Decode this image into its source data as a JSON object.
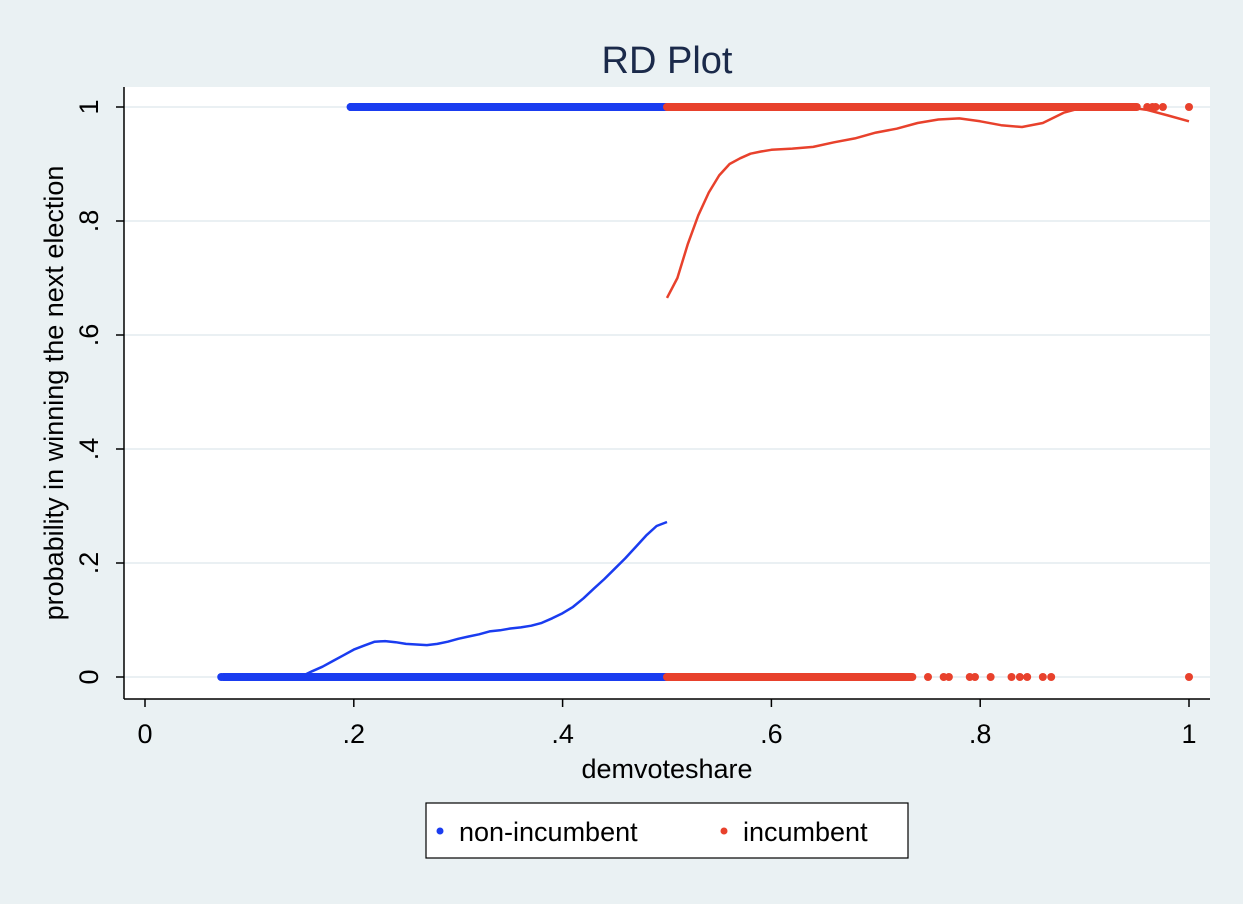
{
  "chart_data": {
    "type": "scatter",
    "title": "RD Plot",
    "xlabel": "demvoteshare",
    "ylabel": "probability in winning the next election",
    "xlim": [
      0,
      1
    ],
    "ylim": [
      0,
      1
    ],
    "xticks": [
      {
        "value": 0,
        "label": "0"
      },
      {
        "value": 0.2,
        "label": ".2"
      },
      {
        "value": 0.4,
        "label": ".4"
      },
      {
        "value": 0.6,
        "label": ".6"
      },
      {
        "value": 0.8,
        "label": ".8"
      },
      {
        "value": 1,
        "label": "1"
      }
    ],
    "yticks": [
      {
        "value": 0,
        "label": "0"
      },
      {
        "value": 0.2,
        "label": ".2"
      },
      {
        "value": 0.4,
        "label": ".4"
      },
      {
        "value": 0.6,
        "label": ".6"
      },
      {
        "value": 0.8,
        "label": ".8"
      },
      {
        "value": 1,
        "label": "1"
      }
    ],
    "grid": true,
    "legend_position": "bottom",
    "cutoff": 0.5,
    "series": [
      {
        "name": "non-incumbent",
        "color": "#1a3cf0",
        "scatter_bands": [
          {
            "y": 1,
            "x_from": 0.197,
            "x_to": 0.5
          },
          {
            "y": 0,
            "x_from": 0.075,
            "x_to": 0.5
          }
        ],
        "scatter_points": [
          {
            "x": 0.073,
            "y": 0
          },
          {
            "x": 0.095,
            "y": 0
          },
          {
            "x": 0.118,
            "y": 0
          },
          {
            "x": 0.133,
            "y": 0
          },
          {
            "x": 0.143,
            "y": 0
          },
          {
            "x": 0.15,
            "y": 0
          },
          {
            "x": 0.155,
            "y": 0
          },
          {
            "x": 0.197,
            "y": 1
          },
          {
            "x": 0.2,
            "y": 1
          },
          {
            "x": 0.212,
            "y": 1
          },
          {
            "x": 0.218,
            "y": 1
          },
          {
            "x": 0.224,
            "y": 1
          },
          {
            "x": 0.23,
            "y": 1
          },
          {
            "x": 0.236,
            "y": 1
          },
          {
            "x": 0.24,
            "y": 1
          },
          {
            "x": 0.248,
            "y": 1
          },
          {
            "x": 0.252,
            "y": 1
          },
          {
            "x": 0.26,
            "y": 1
          },
          {
            "x": 0.262,
            "y": 1
          },
          {
            "x": 0.272,
            "y": 1
          }
        ],
        "fit_line": {
          "x": [
            0.075,
            0.15,
            0.16,
            0.17,
            0.18,
            0.19,
            0.2,
            0.21,
            0.22,
            0.23,
            0.24,
            0.25,
            0.26,
            0.27,
            0.28,
            0.29,
            0.3,
            0.31,
            0.32,
            0.33,
            0.34,
            0.35,
            0.36,
            0.37,
            0.38,
            0.39,
            0.4,
            0.41,
            0.42,
            0.43,
            0.44,
            0.45,
            0.46,
            0.47,
            0.48,
            0.49,
            0.5
          ],
          "y": [
            0,
            0.001,
            0.01,
            0.018,
            0.028,
            0.038,
            0.048,
            0.055,
            0.062,
            0.063,
            0.061,
            0.058,
            0.057,
            0.056,
            0.058,
            0.062,
            0.067,
            0.071,
            0.075,
            0.08,
            0.082,
            0.085,
            0.087,
            0.09,
            0.095,
            0.103,
            0.112,
            0.123,
            0.138,
            0.155,
            0.172,
            0.19,
            0.208,
            0.228,
            0.248,
            0.265,
            0.272
          ]
        }
      },
      {
        "name": "incumbent",
        "color": "#e8412c",
        "scatter_bands": [
          {
            "y": 1,
            "x_from": 0.5,
            "x_to": 0.95
          },
          {
            "y": 0,
            "x_from": 0.5,
            "x_to": 0.735
          }
        ],
        "scatter_points": [
          {
            "x": 0.96,
            "y": 1
          },
          {
            "x": 0.965,
            "y": 1
          },
          {
            "x": 0.968,
            "y": 1
          },
          {
            "x": 0.975,
            "y": 1
          },
          {
            "x": 1,
            "y": 1
          },
          {
            "x": 0.75,
            "y": 0
          },
          {
            "x": 0.765,
            "y": 0
          },
          {
            "x": 0.77,
            "y": 0
          },
          {
            "x": 0.79,
            "y": 0
          },
          {
            "x": 0.795,
            "y": 0
          },
          {
            "x": 0.81,
            "y": 0
          },
          {
            "x": 0.83,
            "y": 0
          },
          {
            "x": 0.838,
            "y": 0
          },
          {
            "x": 0.845,
            "y": 0
          },
          {
            "x": 0.86,
            "y": 0
          },
          {
            "x": 0.868,
            "y": 0
          },
          {
            "x": 1,
            "y": 0
          }
        ],
        "fit_line": {
          "x": [
            0.5,
            0.51,
            0.52,
            0.53,
            0.54,
            0.55,
            0.56,
            0.57,
            0.58,
            0.59,
            0.6,
            0.62,
            0.64,
            0.66,
            0.68,
            0.7,
            0.72,
            0.74,
            0.76,
            0.78,
            0.8,
            0.82,
            0.84,
            0.86,
            0.88,
            0.9,
            0.92,
            0.94,
            0.96,
            0.98,
            1.0
          ],
          "y": [
            0.665,
            0.7,
            0.76,
            0.81,
            0.85,
            0.88,
            0.9,
            0.91,
            0.918,
            0.922,
            0.925,
            0.927,
            0.93,
            0.938,
            0.945,
            0.955,
            0.962,
            0.972,
            0.978,
            0.98,
            0.975,
            0.968,
            0.965,
            0.972,
            0.99,
            1.0,
            1.0,
            1.0,
            0.995,
            0.985,
            0.975
          ]
        }
      }
    ]
  }
}
